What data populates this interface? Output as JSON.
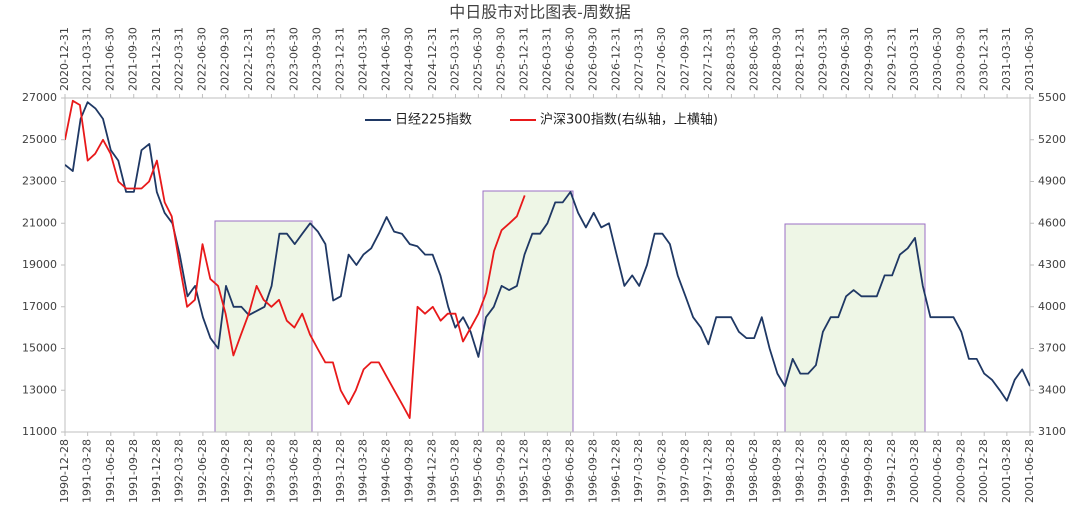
{
  "chart_data": {
    "type": "line",
    "title": "中日股市对比图表-周数据",
    "ylim": [
      11000,
      27000
    ],
    "yticks": [
      11000,
      13000,
      15000,
      17000,
      19000,
      21000,
      23000,
      25000,
      27000
    ],
    "y2lim": [
      3100,
      5500
    ],
    "y2ticks": [
      3100,
      3400,
      3700,
      4000,
      4300,
      4600,
      4900,
      5200,
      5500
    ],
    "xlim": [
      "1990-12-28",
      "2001-06-28"
    ],
    "xticks": [
      "1990-12-28",
      "1991-03-28",
      "1991-06-28",
      "1991-09-28",
      "1991-12-28",
      "1992-03-28",
      "1992-06-28",
      "1992-09-28",
      "1992-12-28",
      "1993-03-28",
      "1993-06-28",
      "1993-09-28",
      "1993-12-28",
      "1994-03-28",
      "1994-06-28",
      "1994-09-28",
      "1994-12-28",
      "1995-03-28",
      "1995-06-28",
      "1995-09-28",
      "1995-12-28",
      "1996-03-28",
      "1996-06-28",
      "1996-09-28",
      "1996-12-28",
      "1997-03-28",
      "1997-06-28",
      "1997-09-28",
      "1997-12-28",
      "1998-03-28",
      "1998-06-28",
      "1998-09-28",
      "1998-12-28",
      "1999-03-28",
      "1999-06-28",
      "1999-09-28",
      "1999-12-28",
      "2000-03-28",
      "2000-06-28",
      "2000-09-28",
      "2000-12-28",
      "2001-03-28",
      "2001-06-28"
    ],
    "x2lim": [
      "2020-12-31",
      "2031-06-30"
    ],
    "x2ticks": [
      "2020-12-31",
      "2021-03-31",
      "2021-06-30",
      "2021-09-30",
      "2021-12-31",
      "2022-03-31",
      "2022-06-30",
      "2022-09-30",
      "2022-12-31",
      "2023-03-31",
      "2023-06-30",
      "2023-09-30",
      "2023-12-31",
      "2024-03-31",
      "2024-06-30",
      "2024-09-30",
      "2024-12-31",
      "2025-03-31",
      "2025-06-30",
      "2025-09-30",
      "2025-12-31",
      "2026-03-31",
      "2026-06-30",
      "2026-09-30",
      "2026-12-31",
      "2027-03-31",
      "2027-06-30",
      "2027-09-30",
      "2027-12-31",
      "2028-03-31",
      "2028-06-30",
      "2028-09-30",
      "2028-12-31",
      "2029-03-31",
      "2029-06-30",
      "2029-09-30",
      "2029-12-31",
      "2030-03-31",
      "2030-06-30",
      "2030-09-30",
      "2030-12-31",
      "2031-03-31",
      "2031-06-30"
    ],
    "legend": "top",
    "series": [
      {
        "name": "日经225指数",
        "color": "#1f3864",
        "x": [
          "1990-12-28",
          "1991-01-28",
          "1991-02-28",
          "1991-03-28",
          "1991-04-28",
          "1991-05-28",
          "1991-06-28",
          "1991-07-28",
          "1991-08-28",
          "1991-09-28",
          "1991-10-28",
          "1991-11-28",
          "1991-12-28",
          "1992-01-28",
          "1992-02-28",
          "1992-03-28",
          "1992-04-28",
          "1992-05-28",
          "1992-06-28",
          "1992-07-28",
          "1992-08-28",
          "1992-09-28",
          "1992-10-28",
          "1992-11-28",
          "1992-12-28",
          "1993-01-28",
          "1993-02-28",
          "1993-03-28",
          "1993-04-28",
          "1993-05-28",
          "1993-06-28",
          "1993-07-28",
          "1993-08-28",
          "1993-09-28",
          "1993-10-28",
          "1993-11-28",
          "1993-12-28",
          "1994-01-28",
          "1994-02-28",
          "1994-03-28",
          "1994-04-28",
          "1994-05-28",
          "1994-06-28",
          "1994-07-28",
          "1994-08-28",
          "1994-09-28",
          "1994-10-28",
          "1994-11-28",
          "1994-12-28",
          "1995-01-28",
          "1995-02-28",
          "1995-03-28",
          "1995-04-28",
          "1995-05-28",
          "1995-06-28",
          "1995-07-28",
          "1995-08-28",
          "1995-09-28",
          "1995-10-28",
          "1995-11-28",
          "1995-12-28",
          "1996-01-28",
          "1996-02-28",
          "1996-03-28",
          "1996-04-28",
          "1996-05-28",
          "1996-06-28",
          "1996-07-28",
          "1996-08-28",
          "1996-09-28",
          "1996-10-28",
          "1996-11-28",
          "1996-12-28",
          "1997-01-28",
          "1997-02-28",
          "1997-03-28",
          "1997-04-28",
          "1997-05-28",
          "1997-06-28",
          "1997-07-28",
          "1997-08-28",
          "1997-09-28",
          "1997-10-28",
          "1997-11-28",
          "1997-12-28",
          "1998-01-28",
          "1998-02-28",
          "1998-03-28",
          "1998-04-28",
          "1998-05-28",
          "1998-06-28",
          "1998-07-28",
          "1998-08-28",
          "1998-09-28",
          "1998-10-28",
          "1998-11-28",
          "1998-12-28",
          "1999-01-28",
          "1999-02-28",
          "1999-03-28",
          "1999-04-28",
          "1999-05-28",
          "1999-06-28",
          "1999-07-28",
          "1999-08-28",
          "1999-09-28",
          "1999-10-28",
          "1999-11-28",
          "1999-12-28",
          "2000-01-28",
          "2000-02-28",
          "2000-03-28",
          "2000-04-28",
          "2000-05-28",
          "2000-06-28",
          "2000-07-28",
          "2000-08-28",
          "2000-09-28",
          "2000-10-28",
          "2000-11-28",
          "2000-12-28",
          "2001-01-28",
          "2001-02-28",
          "2001-03-28",
          "2001-04-28",
          "2001-05-28",
          "2001-06-28"
        ],
        "values": [
          23800,
          23500,
          26000,
          26800,
          26500,
          26000,
          24500,
          24000,
          22500,
          22500,
          24500,
          24800,
          22500,
          21500,
          21000,
          19500,
          17500,
          18000,
          16500,
          15500,
          15000,
          18000,
          17000,
          17000,
          16600,
          16800,
          17000,
          18000,
          20500,
          20500,
          20000,
          20500,
          21000,
          20600,
          20000,
          17300,
          17500,
          19500,
          19000,
          19500,
          19800,
          20500,
          21300,
          20600,
          20500,
          20000,
          19900,
          19500,
          19500,
          18500,
          17000,
          16000,
          16500,
          15800,
          14600,
          16500,
          17000,
          18000,
          17800,
          18000,
          19500,
          20500,
          20500,
          21000,
          22000,
          22000,
          22500,
          21500,
          20800,
          21500,
          20800,
          21000,
          19500,
          18000,
          18500,
          18000,
          19000,
          20500,
          20500,
          20000,
          18500,
          17500,
          16500,
          16000,
          15200,
          16500,
          16500,
          16500,
          15800,
          15500,
          15500,
          16500,
          15000,
          13800,
          13200,
          14500,
          13800,
          13800,
          14200,
          15800,
          16500,
          16500,
          17500,
          17800,
          17500,
          17500,
          17500,
          18500,
          18500,
          19500,
          19800,
          20300,
          18000,
          16500,
          16500,
          16500,
          16500,
          15800,
          14500,
          14500,
          13800,
          13500,
          13000,
          12500,
          13500,
          14000,
          13200
        ]
      },
      {
        "name": "沪深300指数(右纵轴，上横轴)",
        "color": "#e8191a",
        "axis": "y2",
        "xaxis": "x2",
        "x": [
          "2020-12-31",
          "2021-01-31",
          "2021-02-28",
          "2021-03-31",
          "2021-04-30",
          "2021-05-31",
          "2021-06-30",
          "2021-07-31",
          "2021-08-31",
          "2021-09-30",
          "2021-10-31",
          "2021-11-30",
          "2021-12-31",
          "2022-01-31",
          "2022-02-28",
          "2022-03-31",
          "2022-04-30",
          "2022-05-31",
          "2022-06-30",
          "2022-07-31",
          "2022-08-31",
          "2022-09-30",
          "2022-10-31",
          "2022-11-30",
          "2022-12-31",
          "2023-01-31",
          "2023-02-28",
          "2023-03-31",
          "2023-04-30",
          "2023-05-31",
          "2023-06-30",
          "2023-07-31",
          "2023-08-31",
          "2023-09-30",
          "2023-10-31",
          "2023-11-30",
          "2023-12-31",
          "2024-01-31",
          "2024-02-29",
          "2024-03-31",
          "2024-04-30",
          "2024-05-31",
          "2024-06-30",
          "2024-07-31",
          "2024-08-31",
          "2024-09-30",
          "2024-10-31",
          "2024-11-30",
          "2024-12-31",
          "2025-01-31",
          "2025-02-28",
          "2025-03-31",
          "2025-04-30",
          "2025-05-31",
          "2025-06-30",
          "2025-07-31",
          "2025-08-31",
          "2025-09-30",
          "2025-10-31",
          "2025-11-30",
          "2025-12-31"
        ],
        "values": [
          5200,
          5480,
          5450,
          5050,
          5100,
          5200,
          5100,
          4900,
          4850,
          4850,
          4850,
          4900,
          5050,
          4750,
          4650,
          4300,
          4000,
          4050,
          4450,
          4200,
          4150,
          3950,
          3650,
          3800,
          3950,
          4150,
          4050,
          4000,
          4050,
          3900,
          3850,
          3950,
          3800,
          3700,
          3600,
          3600,
          3400,
          3300,
          3400,
          3550,
          3600,
          3600,
          3500,
          3400,
          3300,
          3200,
          4000,
          3950,
          4000,
          3900,
          3950,
          3950,
          3750,
          3850,
          3950,
          4100,
          4400,
          4550,
          4600,
          4650,
          4800
        ]
      }
    ]
  }
}
